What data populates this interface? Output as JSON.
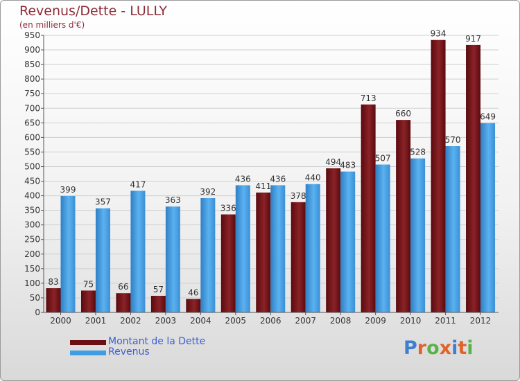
{
  "header": {
    "title": "Revenus/Dette - LULLY",
    "subtitle": "(en milliers d'€)"
  },
  "legend": {
    "items": [
      {
        "label": "Montant de la Dette",
        "color": "#6b0f14"
      },
      {
        "label": "Revenus",
        "color": "#3f9ee3"
      }
    ]
  },
  "brand": {
    "text": "Proxiti",
    "letter_colors": [
      "#3f7fd1",
      "#e2622a",
      "#5bb14a",
      "#e2622a",
      "#3f7fd1",
      "#e2622a",
      "#5bb14a"
    ]
  },
  "chart_data": {
    "type": "bar",
    "categories": [
      "2000",
      "2001",
      "2002",
      "2003",
      "2004",
      "2005",
      "2006",
      "2007",
      "2008",
      "2009",
      "2010",
      "2011",
      "2012"
    ],
    "series": [
      {
        "name": "Montant de la Dette",
        "color": "#6b0f14",
        "values": [
          83,
          75,
          66,
          57,
          46,
          336,
          411,
          378,
          494,
          713,
          660,
          934,
          917
        ]
      },
      {
        "name": "Revenus",
        "color": "#3f9ee3",
        "values": [
          399,
          357,
          417,
          363,
          392,
          436,
          436,
          440,
          483,
          507,
          528,
          570,
          649
        ]
      }
    ],
    "ylim": [
      0,
      950
    ],
    "ytick_step": 50,
    "grid": true,
    "legend_position": "bottom-left"
  }
}
